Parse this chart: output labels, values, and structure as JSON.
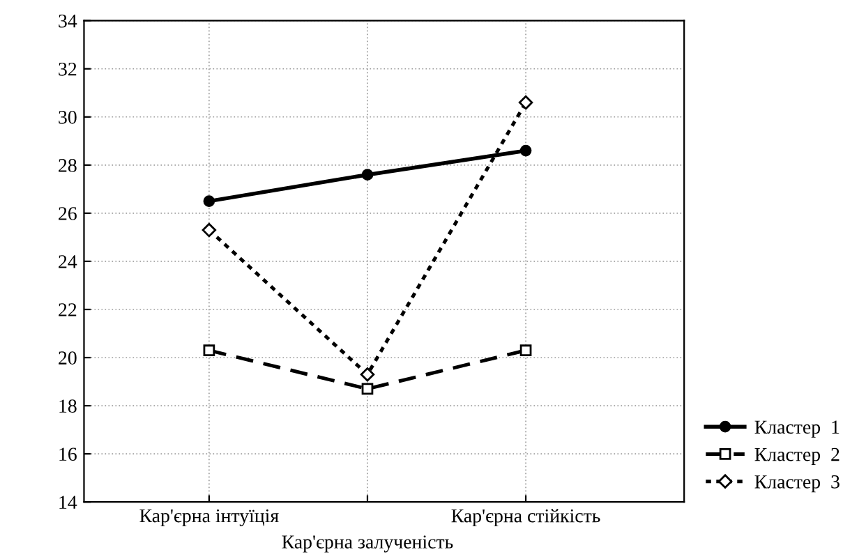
{
  "chart_data": {
    "type": "line",
    "categories": [
      "Кар'єрна інтуїція",
      "Кар'єрна залученість",
      "Кар'єрна стійкість"
    ],
    "series": [
      {
        "name": "Кластер  1",
        "color": "#000000",
        "values": [
          26.5,
          27.6,
          28.6
        ],
        "marker": "circle",
        "line_style": "solid"
      },
      {
        "name": "Кластер  2",
        "color": "#000000",
        "values": [
          20.3,
          18.7,
          20.3
        ],
        "marker": "square",
        "line_style": "dashed"
      },
      {
        "name": "Кластер  3",
        "color": "#000000",
        "values": [
          25.3,
          19.3,
          30.6
        ],
        "marker": "diamond",
        "line_style": "dotted"
      }
    ],
    "ylim": [
      14,
      34
    ],
    "yticks": [
      14,
      16,
      18,
      20,
      22,
      24,
      26,
      28,
      30,
      32,
      34
    ],
    "grid": true,
    "legend": "bottom right"
  }
}
